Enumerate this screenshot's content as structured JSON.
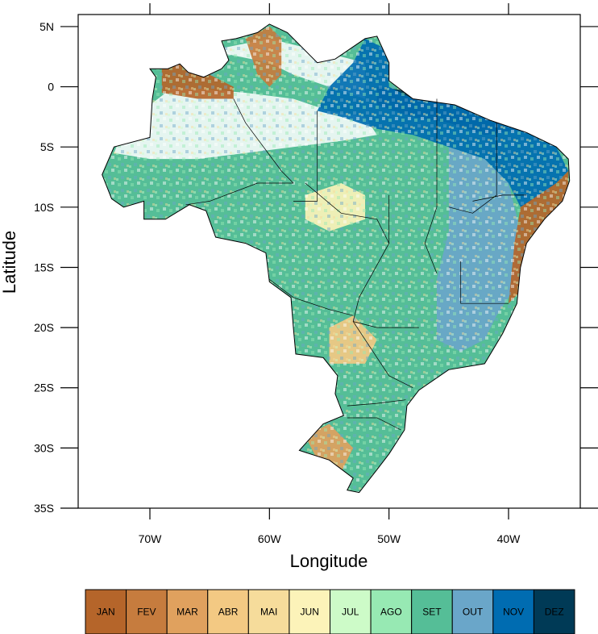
{
  "chart_data": {
    "type": "heatmap",
    "xlabel": "Longitude",
    "ylabel": "Latitude",
    "xlim": [
      -76,
      -34
    ],
    "ylim": [
      -35,
      6
    ],
    "x_ticks": [
      {
        "value": -70,
        "label": "70W"
      },
      {
        "value": -60,
        "label": "60W"
      },
      {
        "value": -50,
        "label": "50W"
      },
      {
        "value": -40,
        "label": "40W"
      }
    ],
    "y_ticks": [
      {
        "value": 5,
        "label": "5N"
      },
      {
        "value": 0,
        "label": "0"
      },
      {
        "value": -5,
        "label": "5S"
      },
      {
        "value": -10,
        "label": "10S"
      },
      {
        "value": -15,
        "label": "15S"
      },
      {
        "value": -20,
        "label": "20S"
      },
      {
        "value": -25,
        "label": "25S"
      },
      {
        "value": -30,
        "label": "30S"
      },
      {
        "value": -35,
        "label": "35S"
      }
    ],
    "legend": {
      "position": "bottom",
      "entries": [
        {
          "label": "JAN",
          "color": "#b5652a"
        },
        {
          "label": "FEV",
          "color": "#c67c3e"
        },
        {
          "label": "MAR",
          "color": "#e0a15e"
        },
        {
          "label": "ABR",
          "color": "#f3c983"
        },
        {
          "label": "MAI",
          "color": "#f6dc9b"
        },
        {
          "label": "JUN",
          "color": "#fcf3b9"
        },
        {
          "label": "JUL",
          "color": "#cdfbc8"
        },
        {
          "label": "AGO",
          "color": "#97e9b3"
        },
        {
          "label": "SET",
          "color": "#55be97"
        },
        {
          "label": "OUT",
          "color": "#6aa6c9"
        },
        {
          "label": "NOV",
          "color": "#006cb1"
        },
        {
          "label": "DEZ",
          "color": "#003a56"
        }
      ]
    },
    "regions": [
      {
        "month": "DEZ",
        "polygon": [
          [
            -51,
            0
          ],
          [
            -47,
            -0.5
          ],
          [
            -43,
            -1.5
          ],
          [
            -40,
            -2.5
          ],
          [
            -38.5,
            -3.5
          ],
          [
            -42,
            -4
          ],
          [
            -45,
            -3
          ],
          [
            -48,
            -2.5
          ],
          [
            -51,
            -1.5
          ]
        ]
      },
      {
        "month": "NOV",
        "polygon": [
          [
            -52,
            4
          ],
          [
            -50,
            3
          ],
          [
            -50,
            0
          ],
          [
            -48,
            -1
          ],
          [
            -46,
            -1
          ],
          [
            -43,
            -2
          ],
          [
            -40,
            -3
          ],
          [
            -36,
            -5
          ],
          [
            -35,
            -7
          ],
          [
            -37,
            -9
          ],
          [
            -39,
            -10
          ],
          [
            -40,
            -8
          ],
          [
            -42,
            -6
          ],
          [
            -45,
            -5
          ],
          [
            -48,
            -4
          ],
          [
            -51,
            -3.5
          ],
          [
            -54,
            -2.5
          ],
          [
            -56,
            -2
          ],
          [
            -55,
            0
          ],
          [
            -53,
            2
          ]
        ]
      },
      {
        "month": "OUT",
        "polygon": [
          [
            -45,
            -5
          ],
          [
            -42,
            -6
          ],
          [
            -40,
            -8
          ],
          [
            -39,
            -12
          ],
          [
            -39,
            -16
          ],
          [
            -41,
            -19
          ],
          [
            -42,
            -21
          ],
          [
            -44,
            -22
          ],
          [
            -46,
            -21
          ],
          [
            -46,
            -16
          ],
          [
            -45,
            -12
          ]
        ]
      },
      {
        "month": "JAN",
        "polygon": [
          [
            -39,
            -10
          ],
          [
            -36,
            -8
          ],
          [
            -35,
            -7
          ],
          [
            -35,
            -9
          ],
          [
            -37,
            -11
          ],
          [
            -38.5,
            -14
          ],
          [
            -39,
            -17
          ],
          [
            -40,
            -18
          ],
          [
            -39.5,
            -13
          ]
        ]
      },
      {
        "month": "JAN",
        "polygon": [
          [
            -69,
            1.5
          ],
          [
            -67,
            2
          ],
          [
            -65,
            1
          ],
          [
            -63,
            0
          ],
          [
            -63,
            -1
          ],
          [
            -66,
            -1
          ],
          [
            -69,
            -0.5
          ]
        ]
      },
      {
        "month": "FEV",
        "polygon": [
          [
            -62,
            4
          ],
          [
            -60,
            5
          ],
          [
            -59,
            4
          ],
          [
            -59,
            1
          ],
          [
            -60,
            0
          ],
          [
            -61,
            1
          ]
        ]
      },
      {
        "month": "JUN",
        "polygon": [
          [
            -57,
            -9
          ],
          [
            -54,
            -8
          ],
          [
            -52,
            -9
          ],
          [
            -52,
            -11
          ],
          [
            -55,
            -12
          ],
          [
            -57,
            -11
          ]
        ]
      },
      {
        "month": "ABR",
        "polygon": [
          [
            -55,
            -20
          ],
          [
            -53,
            -19
          ],
          [
            -51,
            -21
          ],
          [
            -52,
            -23
          ],
          [
            -55,
            -23
          ]
        ]
      },
      {
        "month": "MAR",
        "polygon": [
          [
            -57,
            -29
          ],
          [
            -55,
            -28
          ],
          [
            -53,
            -30
          ],
          [
            -54,
            -32
          ],
          [
            -56,
            -31
          ]
        ]
      }
    ]
  }
}
